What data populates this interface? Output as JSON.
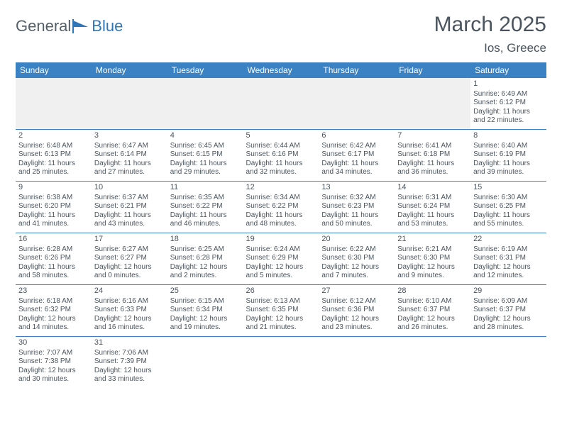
{
  "brand": {
    "word1": "General",
    "word2": "Blue"
  },
  "title": "March 2025",
  "location": "Ios, Greece",
  "colors": {
    "header_bg": "#3b82c4",
    "header_fg": "#ffffff",
    "text": "#4a545e",
    "empty_bg": "#f0f0f0",
    "rule": "#3b82c4"
  },
  "font": {
    "day_header_pt": 12,
    "cell_pt": 10,
    "title_pt": 30,
    "location_pt": 17
  },
  "day_names": [
    "Sunday",
    "Monday",
    "Tuesday",
    "Wednesday",
    "Thursday",
    "Friday",
    "Saturday"
  ],
  "weeks": [
    [
      null,
      null,
      null,
      null,
      null,
      null,
      {
        "n": "1",
        "sunrise": "Sunrise: 6:49 AM",
        "sunset": "Sunset: 6:12 PM",
        "daylight": "Daylight: 11 hours and 22 minutes."
      }
    ],
    [
      {
        "n": "2",
        "sunrise": "Sunrise: 6:48 AM",
        "sunset": "Sunset: 6:13 PM",
        "daylight": "Daylight: 11 hours and 25 minutes."
      },
      {
        "n": "3",
        "sunrise": "Sunrise: 6:47 AM",
        "sunset": "Sunset: 6:14 PM",
        "daylight": "Daylight: 11 hours and 27 minutes."
      },
      {
        "n": "4",
        "sunrise": "Sunrise: 6:45 AM",
        "sunset": "Sunset: 6:15 PM",
        "daylight": "Daylight: 11 hours and 29 minutes."
      },
      {
        "n": "5",
        "sunrise": "Sunrise: 6:44 AM",
        "sunset": "Sunset: 6:16 PM",
        "daylight": "Daylight: 11 hours and 32 minutes."
      },
      {
        "n": "6",
        "sunrise": "Sunrise: 6:42 AM",
        "sunset": "Sunset: 6:17 PM",
        "daylight": "Daylight: 11 hours and 34 minutes."
      },
      {
        "n": "7",
        "sunrise": "Sunrise: 6:41 AM",
        "sunset": "Sunset: 6:18 PM",
        "daylight": "Daylight: 11 hours and 36 minutes."
      },
      {
        "n": "8",
        "sunrise": "Sunrise: 6:40 AM",
        "sunset": "Sunset: 6:19 PM",
        "daylight": "Daylight: 11 hours and 39 minutes."
      }
    ],
    [
      {
        "n": "9",
        "sunrise": "Sunrise: 6:38 AM",
        "sunset": "Sunset: 6:20 PM",
        "daylight": "Daylight: 11 hours and 41 minutes."
      },
      {
        "n": "10",
        "sunrise": "Sunrise: 6:37 AM",
        "sunset": "Sunset: 6:21 PM",
        "daylight": "Daylight: 11 hours and 43 minutes."
      },
      {
        "n": "11",
        "sunrise": "Sunrise: 6:35 AM",
        "sunset": "Sunset: 6:22 PM",
        "daylight": "Daylight: 11 hours and 46 minutes."
      },
      {
        "n": "12",
        "sunrise": "Sunrise: 6:34 AM",
        "sunset": "Sunset: 6:22 PM",
        "daylight": "Daylight: 11 hours and 48 minutes."
      },
      {
        "n": "13",
        "sunrise": "Sunrise: 6:32 AM",
        "sunset": "Sunset: 6:23 PM",
        "daylight": "Daylight: 11 hours and 50 minutes."
      },
      {
        "n": "14",
        "sunrise": "Sunrise: 6:31 AM",
        "sunset": "Sunset: 6:24 PM",
        "daylight": "Daylight: 11 hours and 53 minutes."
      },
      {
        "n": "15",
        "sunrise": "Sunrise: 6:30 AM",
        "sunset": "Sunset: 6:25 PM",
        "daylight": "Daylight: 11 hours and 55 minutes."
      }
    ],
    [
      {
        "n": "16",
        "sunrise": "Sunrise: 6:28 AM",
        "sunset": "Sunset: 6:26 PM",
        "daylight": "Daylight: 11 hours and 58 minutes."
      },
      {
        "n": "17",
        "sunrise": "Sunrise: 6:27 AM",
        "sunset": "Sunset: 6:27 PM",
        "daylight": "Daylight: 12 hours and 0 minutes."
      },
      {
        "n": "18",
        "sunrise": "Sunrise: 6:25 AM",
        "sunset": "Sunset: 6:28 PM",
        "daylight": "Daylight: 12 hours and 2 minutes."
      },
      {
        "n": "19",
        "sunrise": "Sunrise: 6:24 AM",
        "sunset": "Sunset: 6:29 PM",
        "daylight": "Daylight: 12 hours and 5 minutes."
      },
      {
        "n": "20",
        "sunrise": "Sunrise: 6:22 AM",
        "sunset": "Sunset: 6:30 PM",
        "daylight": "Daylight: 12 hours and 7 minutes."
      },
      {
        "n": "21",
        "sunrise": "Sunrise: 6:21 AM",
        "sunset": "Sunset: 6:30 PM",
        "daylight": "Daylight: 12 hours and 9 minutes."
      },
      {
        "n": "22",
        "sunrise": "Sunrise: 6:19 AM",
        "sunset": "Sunset: 6:31 PM",
        "daylight": "Daylight: 12 hours and 12 minutes."
      }
    ],
    [
      {
        "n": "23",
        "sunrise": "Sunrise: 6:18 AM",
        "sunset": "Sunset: 6:32 PM",
        "daylight": "Daylight: 12 hours and 14 minutes."
      },
      {
        "n": "24",
        "sunrise": "Sunrise: 6:16 AM",
        "sunset": "Sunset: 6:33 PM",
        "daylight": "Daylight: 12 hours and 16 minutes."
      },
      {
        "n": "25",
        "sunrise": "Sunrise: 6:15 AM",
        "sunset": "Sunset: 6:34 PM",
        "daylight": "Daylight: 12 hours and 19 minutes."
      },
      {
        "n": "26",
        "sunrise": "Sunrise: 6:13 AM",
        "sunset": "Sunset: 6:35 PM",
        "daylight": "Daylight: 12 hours and 21 minutes."
      },
      {
        "n": "27",
        "sunrise": "Sunrise: 6:12 AM",
        "sunset": "Sunset: 6:36 PM",
        "daylight": "Daylight: 12 hours and 23 minutes."
      },
      {
        "n": "28",
        "sunrise": "Sunrise: 6:10 AM",
        "sunset": "Sunset: 6:37 PM",
        "daylight": "Daylight: 12 hours and 26 minutes."
      },
      {
        "n": "29",
        "sunrise": "Sunrise: 6:09 AM",
        "sunset": "Sunset: 6:37 PM",
        "daylight": "Daylight: 12 hours and 28 minutes."
      }
    ],
    [
      {
        "n": "30",
        "sunrise": "Sunrise: 7:07 AM",
        "sunset": "Sunset: 7:38 PM",
        "daylight": "Daylight: 12 hours and 30 minutes."
      },
      {
        "n": "31",
        "sunrise": "Sunrise: 7:06 AM",
        "sunset": "Sunset: 7:39 PM",
        "daylight": "Daylight: 12 hours and 33 minutes."
      },
      null,
      null,
      null,
      null,
      null
    ]
  ]
}
